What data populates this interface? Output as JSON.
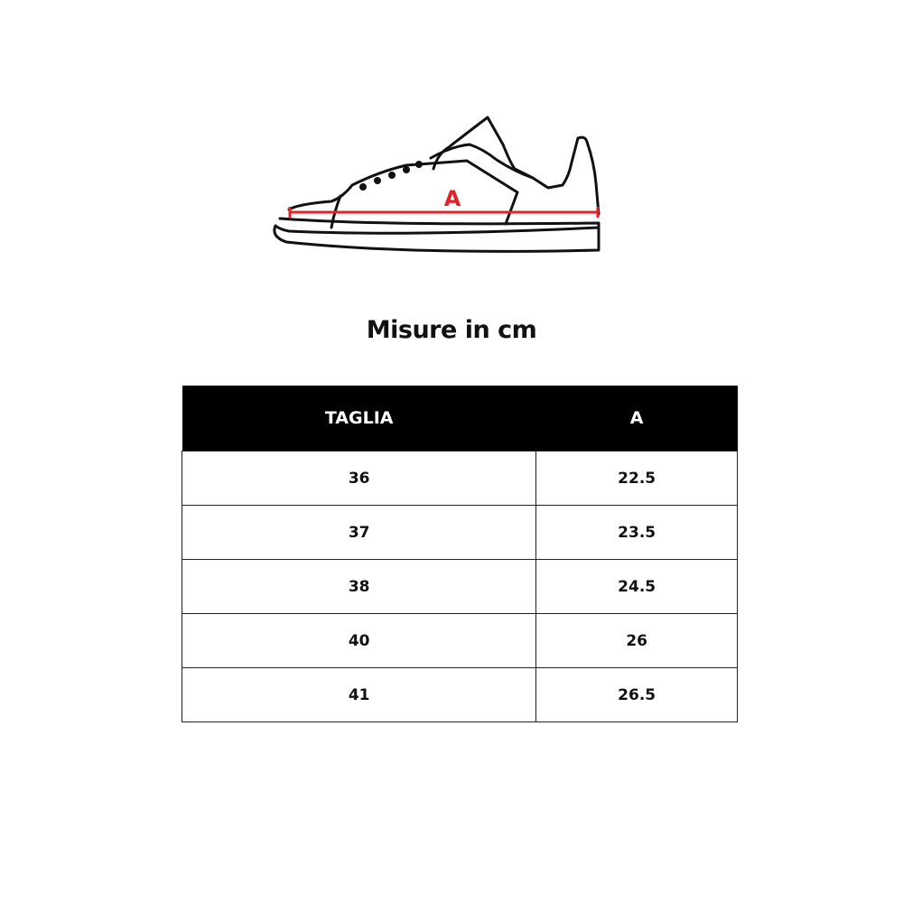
{
  "illustration": {
    "measure_label": "A",
    "measure_color": "#e0232a"
  },
  "title": "Misure in cm",
  "table": {
    "headers": [
      "TAGLIA",
      "A"
    ],
    "rows": [
      [
        "36",
        "22.5"
      ],
      [
        "37",
        "23.5"
      ],
      [
        "38",
        "24.5"
      ],
      [
        "40",
        "26"
      ],
      [
        "41",
        "26.5"
      ]
    ]
  }
}
